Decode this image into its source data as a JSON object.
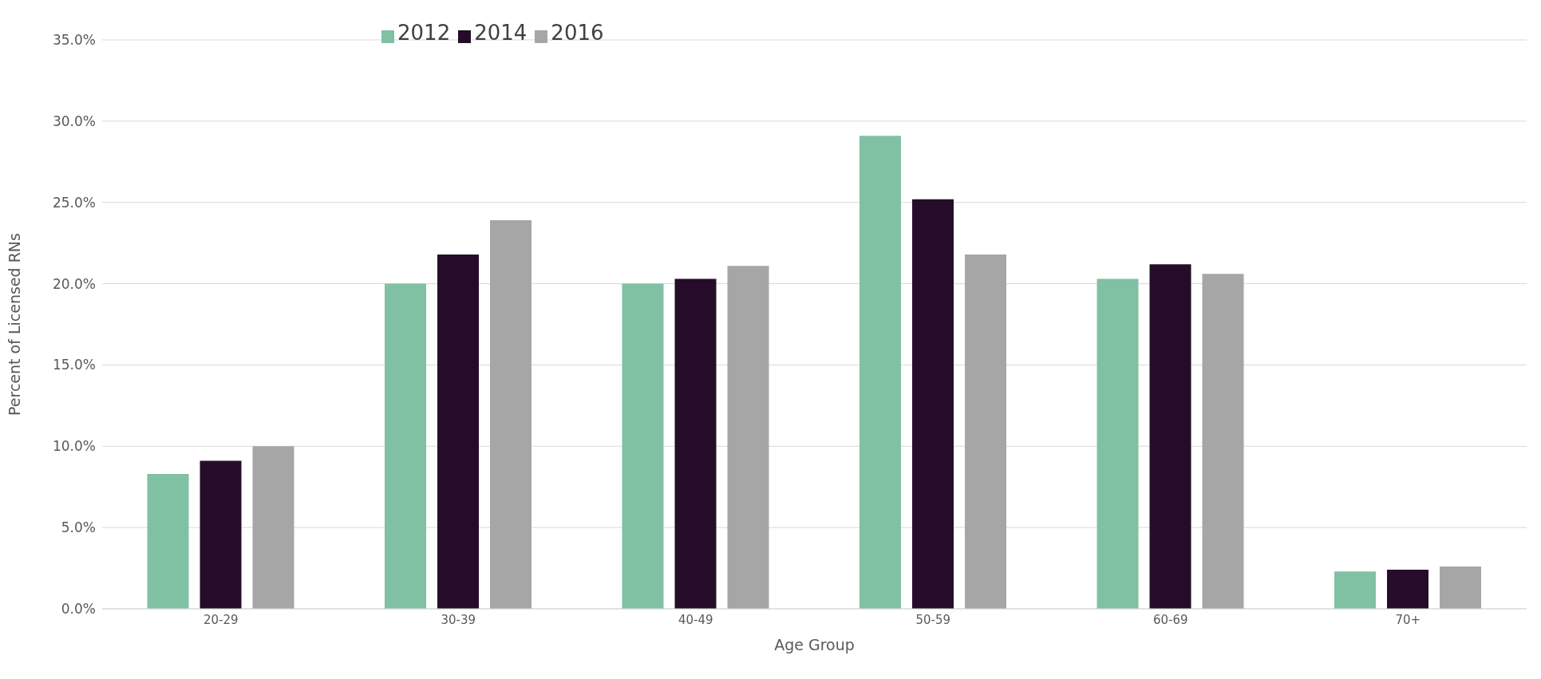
{
  "chart_data": {
    "type": "bar",
    "xlabel": "Age Group",
    "ylabel": "Percent of Licensed RNs",
    "categories": [
      "20-29",
      "30-39",
      "40-49",
      "50-59",
      "60-69",
      "70+"
    ],
    "series": [
      {
        "name": "2012",
        "color": "#80c1a3",
        "values": [
          8.3,
          20.0,
          20.0,
          29.1,
          20.3,
          2.3
        ]
      },
      {
        "name": "2014",
        "color": "#250d29",
        "values": [
          9.1,
          21.8,
          20.3,
          25.2,
          21.2,
          2.4
        ]
      },
      {
        "name": "2016",
        "color": "#a6a6a6",
        "values": [
          10.0,
          23.9,
          21.1,
          21.8,
          20.6,
          2.6
        ]
      }
    ],
    "ylim": [
      0,
      35
    ],
    "yticks": [
      {
        "value": 0,
        "label": "0.0%"
      },
      {
        "value": 5,
        "label": "5.0%"
      },
      {
        "value": 10,
        "label": "10.0%"
      },
      {
        "value": 15,
        "label": "15.0%"
      },
      {
        "value": 20,
        "label": "20.0%"
      },
      {
        "value": 25,
        "label": "25.0%"
      },
      {
        "value": 30,
        "label": "30.0%"
      },
      {
        "value": 35,
        "label": "35.0%"
      }
    ],
    "grid": "y",
    "legend": "top left"
  }
}
